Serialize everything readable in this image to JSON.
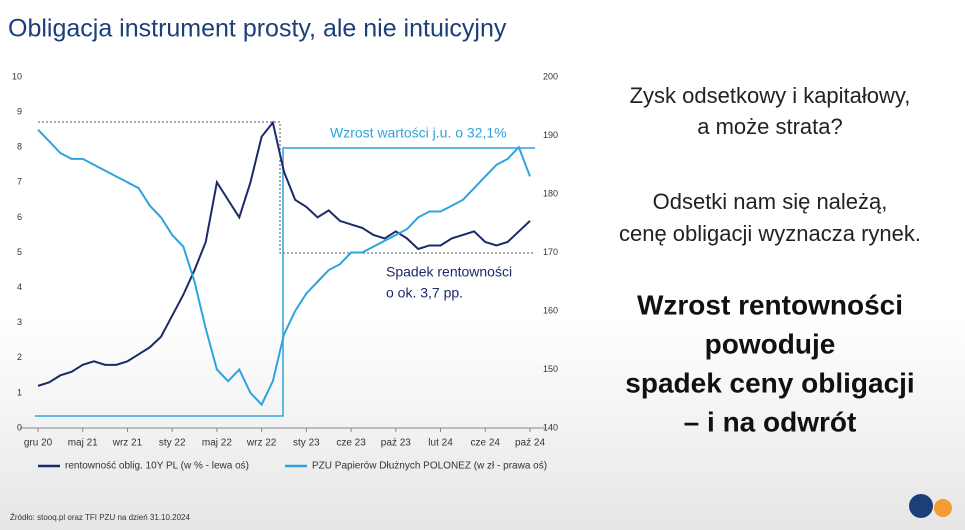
{
  "slide": {
    "title": "Obligacja instrument prosty, ale nie intuicyjny",
    "right_text": [
      "Zysk odsetkowy i  kapitałowy,",
      "a może strata?",
      "Odsetki nam się należą,",
      "cenę obligacji wyznacza rynek."
    ],
    "right_bold": [
      "Wzrost rentowności",
      "powoduje",
      "spadek ceny obligacji",
      "– i na odwrót"
    ],
    "source": "Źródło: stooq.pl oraz TFI PZU na dzień 31.10.2024"
  },
  "chart_data": {
    "type": "line",
    "categories": [
      "gru 20",
      null,
      null,
      null,
      "maj 21",
      null,
      null,
      null,
      "wrz 21",
      null,
      null,
      null,
      "sty 22",
      null,
      null,
      null,
      "maj 22",
      null,
      null,
      null,
      "wrz 22",
      null,
      null,
      null,
      "sty 23",
      null,
      null,
      null,
      "cze 23",
      null,
      null,
      null,
      "paź 23",
      null,
      null,
      null,
      "lut 24",
      null,
      null,
      null,
      "cze 24",
      null,
      null,
      null,
      "paź 24"
    ],
    "series": [
      {
        "name": "rentowność oblig. 10Y PL (w % - lewa oś)",
        "color": "#1c2a6b",
        "values": [
          1.2,
          1.3,
          1.5,
          1.6,
          1.8,
          1.9,
          1.8,
          1.8,
          1.9,
          2.1,
          2.3,
          2.6,
          3.2,
          3.8,
          4.5,
          5.3,
          7.0,
          6.5,
          6.0,
          7.0,
          8.3,
          8.7,
          7.3,
          6.5,
          6.3,
          6.0,
          6.2,
          5.9,
          5.8,
          5.7,
          5.5,
          5.4,
          5.6,
          5.4,
          5.1,
          5.2,
          5.2,
          5.4,
          5.5,
          5.6,
          5.3,
          5.2,
          5.3,
          5.6,
          5.9
        ]
      },
      {
        "name": "PZU Papierów Dłużnych POLONEZ (w zł - prawa oś)",
        "color": "#2ea3dc",
        "axis": "y2",
        "values": [
          191,
          189,
          187,
          186,
          186,
          185,
          184,
          183,
          182,
          181,
          178,
          176,
          173,
          171,
          165,
          157,
          150,
          148,
          150,
          146,
          144,
          148,
          156,
          160,
          163,
          165,
          167,
          168,
          170,
          170,
          171,
          172,
          173,
          174,
          176,
          177,
          177,
          178,
          179,
          181,
          183,
          185,
          186,
          188,
          183
        ]
      }
    ],
    "ylim": [
      0,
      10
    ],
    "yticks": [
      0,
      1,
      2,
      3,
      4,
      5,
      6,
      7,
      8,
      9,
      10
    ],
    "y2lim": [
      140,
      200
    ],
    "y2ticks": [
      140,
      150,
      160,
      170,
      180,
      190,
      200
    ],
    "annotations": [
      "Wzrost wartości j.u. o 32,1%",
      "Spadek rentowności",
      "o ok. 3,7 pp."
    ],
    "legend": "bottom"
  }
}
